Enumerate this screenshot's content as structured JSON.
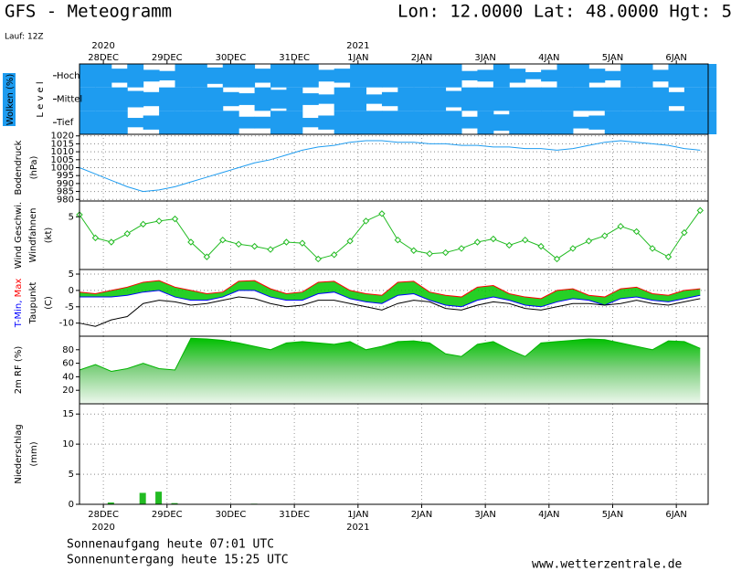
{
  "header": {
    "title": "GFS - Meteogramm",
    "location": "Lon: 12.0000 Lat: 48.0000 Hgt: 5",
    "run": "Lauf: 12Z"
  },
  "time_axis": {
    "x": [
      0,
      6,
      12,
      18,
      24,
      30,
      36,
      42,
      48,
      54,
      60,
      66,
      72,
      78,
      84,
      90,
      96,
      102,
      108,
      114,
      120,
      126,
      132,
      138,
      144,
      150,
      156,
      162,
      168,
      174,
      180,
      186,
      192,
      198,
      204,
      210,
      216,
      222,
      228,
      234
    ],
    "xlim": [
      0,
      237
    ],
    "xticks": [
      {
        "value": 9,
        "label": "28DEC",
        "year": "2020"
      },
      {
        "value": 33,
        "label": "29DEC"
      },
      {
        "value": 57,
        "label": "30DEC"
      },
      {
        "value": 81,
        "label": "31DEC"
      },
      {
        "value": 105,
        "label": "1JAN",
        "year": "2021"
      },
      {
        "value": 129,
        "label": "2JAN"
      },
      {
        "value": 153,
        "label": "3JAN"
      },
      {
        "value": 177,
        "label": "4JAN"
      },
      {
        "value": 201,
        "label": "5JAN"
      },
      {
        "value": 225,
        "label": "6JAN"
      }
    ]
  },
  "chart_data": [
    {
      "type": "cloud-layers",
      "label": "Wolken (%)",
      "sublabel": "L e v e l",
      "series": [
        {
          "name": "Hoch",
          "color": "#1e9cf0",
          "values": [
            100,
            100,
            60,
            100,
            50,
            40,
            100,
            100,
            70,
            100,
            100,
            60,
            100,
            100,
            100,
            50,
            60,
            100,
            100,
            100,
            100,
            100,
            100,
            100,
            40,
            50,
            100,
            60,
            30,
            50,
            100,
            100,
            60,
            40,
            100,
            100,
            50,
            100,
            100,
            100
          ]
        },
        {
          "name": "Mittel",
          "color": "#1e9cf0",
          "values": [
            100,
            100,
            100,
            70,
            60,
            100,
            100,
            100,
            100,
            60,
            50,
            100,
            80,
            100,
            50,
            40,
            100,
            100,
            40,
            60,
            100,
            100,
            100,
            70,
            100,
            100,
            100,
            100,
            100,
            100,
            100,
            100,
            100,
            100,
            100,
            100,
            100,
            60,
            100,
            100
          ]
        },
        {
          "name": "Tief",
          "color": "#1e9cf0",
          "values": [
            100,
            100,
            100,
            40,
            60,
            100,
            100,
            100,
            100,
            100,
            50,
            50,
            100,
            100,
            40,
            60,
            100,
            100,
            100,
            100,
            100,
            100,
            100,
            100,
            50,
            100,
            70,
            100,
            100,
            100,
            100,
            50,
            60,
            100,
            100,
            100,
            100,
            100,
            100,
            100
          ]
        }
      ]
    },
    {
      "type": "line",
      "ylabel": [
        "Bodendruck",
        "(hPa)"
      ],
      "ylim": [
        979,
        1021
      ],
      "yticks": [
        980,
        985,
        990,
        995,
        1000,
        1005,
        1010,
        1015,
        1020
      ],
      "grid": true,
      "series": [
        {
          "color": "#1e9cf0",
          "values": [
            1000,
            996,
            992,
            988,
            985,
            986,
            988,
            991,
            994,
            997,
            1000,
            1003,
            1005,
            1008,
            1011,
            1013,
            1014,
            1016,
            1017,
            1017,
            1016,
            1016,
            1015,
            1015,
            1014,
            1014,
            1013,
            1013,
            1012,
            1012,
            1011,
            1012,
            1014,
            1016,
            1017,
            1016,
            1015,
            1014,
            1012,
            1011
          ]
        }
      ]
    },
    {
      "type": "line",
      "ylabel": [
        "Windfahnen",
        "(kt)"
      ],
      "ylim": [
        0,
        6.5
      ],
      "yticks": [
        5
      ],
      "markers": true,
      "grid": false,
      "series": [
        {
          "name": "Wind Geschwi.",
          "color": "#22bb22",
          "values": [
            5.2,
            3.0,
            2.6,
            3.4,
            4.3,
            4.6,
            4.8,
            2.6,
            1.2,
            2.8,
            2.4,
            2.2,
            1.9,
            2.6,
            2.5,
            1.0,
            1.4,
            2.7,
            4.6,
            5.3,
            2.8,
            1.8,
            1.5,
            1.6,
            2.0,
            2.6,
            2.9,
            2.3,
            2.8,
            2.2,
            1.0,
            2.0,
            2.7,
            3.2,
            4.1,
            3.6,
            2.0,
            1.2,
            3.5,
            5.6
          ]
        }
      ]
    },
    {
      "type": "band-line",
      "ylabel": [
        "Taupunkt",
        "(C)"
      ],
      "ylim": [
        -14,
        6.4
      ],
      "yticks": [
        5,
        0,
        -5,
        -10
      ],
      "grid": true,
      "fill": "#00c800",
      "series": [
        {
          "name": "T-Min,",
          "color": "#0000ff",
          "values": [
            -2,
            -2,
            -2,
            -1.5,
            -0.5,
            0,
            -2,
            -3,
            -3,
            -2,
            0,
            0,
            -2,
            -3,
            -3,
            -1,
            -0.5,
            -2.5,
            -3.5,
            -4,
            -1.5,
            -1,
            -3,
            -4.5,
            -5,
            -3,
            -2,
            -3,
            -4.5,
            -5,
            -3.5,
            -2.5,
            -3,
            -4.5,
            -2.5,
            -2,
            -3,
            -3.5,
            -2.5,
            -1.5
          ]
        },
        {
          "name": "Max",
          "color": "#ff0000",
          "values": [
            -0.5,
            -1,
            0,
            1,
            2.5,
            3,
            1,
            0,
            -1,
            -0.5,
            2.8,
            3,
            0.5,
            -1,
            -0.5,
            2.5,
            2.8,
            0,
            -1,
            -1.5,
            2.5,
            2.8,
            -0.5,
            -1.5,
            -2,
            1,
            1.5,
            -1,
            -2,
            -2.5,
            0,
            0.5,
            -1.5,
            -2,
            0.5,
            1,
            -1,
            -1.5,
            0,
            0.5
          ]
        },
        {
          "name": "Taupunkt",
          "color": "#000000",
          "values": [
            -10,
            -11,
            -9,
            -8,
            -4,
            -3,
            -3.5,
            -4.5,
            -4,
            -3,
            -2,
            -2.5,
            -4,
            -5,
            -4.5,
            -3,
            -3,
            -4,
            -5,
            -6,
            -4,
            -3,
            -3.5,
            -5.5,
            -6,
            -4.5,
            -3.5,
            -4,
            -5.5,
            -6,
            -5,
            -4,
            -4,
            -4.5,
            -4,
            -3,
            -4,
            -4.5,
            -3.5,
            -2.5
          ]
        }
      ]
    },
    {
      "type": "area",
      "ylim": [
        0,
        100
      ],
      "yticks": [
        20,
        40,
        60,
        80
      ],
      "grid": false,
      "series": [
        {
          "name": "2m RF (%)",
          "color": "#00b400",
          "values": [
            50,
            58,
            48,
            52,
            60,
            52,
            50,
            97,
            96,
            94,
            90,
            85,
            80,
            90,
            92,
            90,
            88,
            92,
            80,
            85,
            92,
            93,
            90,
            74,
            70,
            88,
            92,
            80,
            70,
            90,
            92,
            94,
            96,
            95,
            90,
            85,
            80,
            93,
            92,
            82
          ]
        }
      ]
    },
    {
      "type": "bar",
      "ylabel": [
        "Niederschlag",
        "(mm)"
      ],
      "ylim": [
        0,
        16.7
      ],
      "yticks": [
        0,
        5,
        10,
        15
      ],
      "grid": true,
      "series": [
        {
          "color": "#22bb22",
          "values": [
            0,
            0,
            0.3,
            0,
            1.9,
            2.1,
            0.2,
            0,
            0,
            0,
            0,
            0.1,
            0,
            0,
            0,
            0,
            0,
            0,
            0,
            0,
            0,
            0,
            0,
            0,
            0,
            0,
            0,
            0,
            0,
            0,
            0,
            0,
            0,
            0,
            0,
            0,
            0,
            0,
            0,
            0
          ]
        }
      ]
    }
  ],
  "footer": {
    "sunrise": "Sonnenaufgang heute 07:01 UTC",
    "sunset": "Sonnenuntergang heute 15:25 UTC",
    "source": "www.wetterzentrale.de"
  }
}
